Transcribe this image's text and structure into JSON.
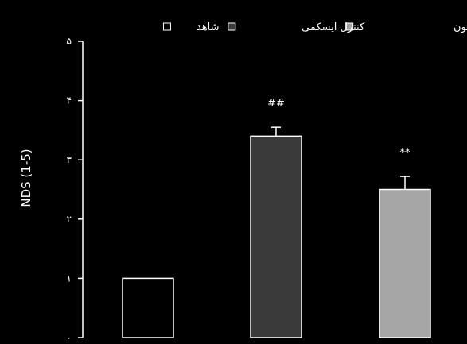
{
  "chart_data": {
    "type": "bar",
    "title": "",
    "xlabel": "",
    "ylabel": "NDS (1-5)",
    "ylim": [
      0,
      5
    ],
    "yticks": [
      {
        "value": 0,
        "label": "٠"
      },
      {
        "value": 1,
        "label": "١"
      },
      {
        "value": 2,
        "label": "٢"
      },
      {
        "value": 3,
        "label": "٣"
      },
      {
        "value": 4,
        "label": "۴"
      },
      {
        "value": 5,
        "label": "۵"
      }
    ],
    "categories": [
      "شاهد",
      "کنترل ایسکمی",
      "ایسکمی و روغن زیتون"
    ],
    "values": [
      1.0,
      3.4,
      2.5
    ],
    "errors": [
      0,
      0.15,
      0.22
    ],
    "annotations": [
      "",
      "##",
      "**"
    ],
    "colors": [
      "#000000",
      "#3a3a3a",
      "#a6a6a6"
    ],
    "legend": {
      "placement": "top",
      "entries": [
        {
          "label": "ایسکمی و روغن زیتون",
          "color": "#a6a6a6"
        },
        {
          "label": "کنترل ایسکمی",
          "color": "#3a3a3a"
        },
        {
          "label": "شاهد",
          "color": "#000000"
        }
      ]
    },
    "grid": false
  }
}
